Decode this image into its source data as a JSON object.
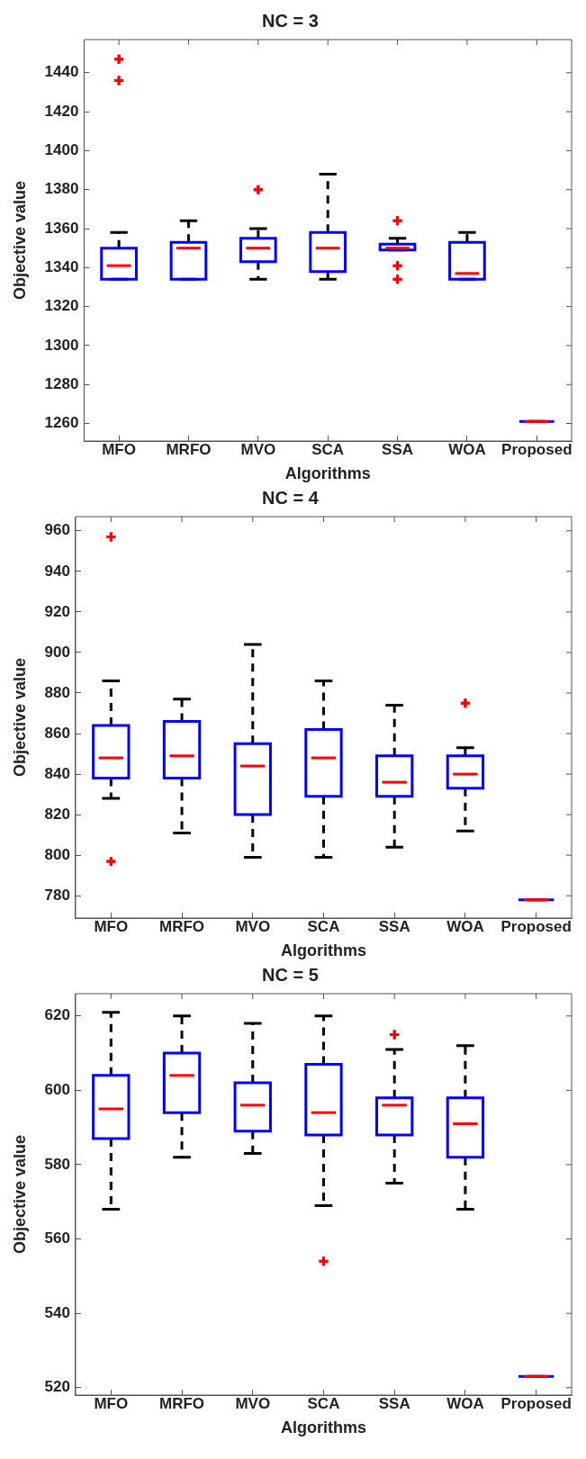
{
  "chart_data": [
    {
      "type": "box",
      "title": "NC = 3",
      "xlabel": "Algorithms",
      "ylabel": "Objective value",
      "categories": [
        "MFO",
        "MRFO",
        "MVO",
        "SCA",
        "SSA",
        "WOA",
        "Proposed"
      ],
      "ylim": [
        1251,
        1457
      ],
      "yticks": [
        1260,
        1280,
        1300,
        1320,
        1340,
        1360,
        1380,
        1400,
        1420,
        1440
      ],
      "grid": false,
      "marker": "cross",
      "series": [
        {
          "color": "#0000ff",
          "boxes": [
            {
              "low": 1334,
              "q1": 1334,
              "median": 1341,
              "q3": 1350,
              "high": 1358,
              "outliers": [
                1447,
                1436
              ]
            },
            {
              "low": 1334,
              "q1": 1334,
              "median": 1350,
              "q3": 1353,
              "high": 1364
            },
            {
              "low": 1334,
              "q1": 1343,
              "median": 1350,
              "q3": 1355,
              "high": 1360,
              "outliers": [
                1380
              ]
            },
            {
              "low": 1334,
              "q1": 1338,
              "median": 1350,
              "q3": 1358,
              "high": 1388
            },
            {
              "low": 1349,
              "q1": 1349,
              "median": 1350,
              "q3": 1352,
              "high": 1355,
              "outliers": [
                1364,
                1341,
                1334
              ]
            },
            {
              "low": 1334,
              "q1": 1334,
              "median": 1337,
              "q3": 1353,
              "high": 1358
            },
            {
              "low": 1261,
              "q1": 1261,
              "median": 1261,
              "q3": 1261,
              "high": 1261
            }
          ]
        }
      ]
    },
    {
      "type": "box",
      "title": "NC = 4",
      "xlabel": "Algorithms",
      "ylabel": "Objective value",
      "categories": [
        "MFO",
        "MRFO",
        "MVO",
        "SCA",
        "SSA",
        "WOA",
        "Proposed"
      ],
      "ylim": [
        769,
        967
      ],
      "yticks": [
        780,
        800,
        820,
        840,
        860,
        880,
        900,
        920,
        940,
        960
      ],
      "grid": false,
      "marker": "cross",
      "series": [
        {
          "color": "#0000ff",
          "boxes": [
            {
              "low": 828,
              "q1": 838,
              "median": 848,
              "q3": 864,
              "high": 886,
              "outliers": [
                957,
                797
              ]
            },
            {
              "low": 811,
              "q1": 838,
              "median": 849,
              "q3": 866,
              "high": 877
            },
            {
              "low": 799,
              "q1": 820,
              "median": 844,
              "q3": 855,
              "high": 904
            },
            {
              "low": 799,
              "q1": 829,
              "median": 848,
              "q3": 862,
              "high": 886
            },
            {
              "low": 804,
              "q1": 829,
              "median": 836,
              "q3": 849,
              "high": 874
            },
            {
              "low": 812,
              "q1": 833,
              "median": 840,
              "q3": 849,
              "high": 853,
              "outliers": [
                875
              ]
            },
            {
              "low": 778,
              "q1": 778,
              "median": 778,
              "q3": 778,
              "high": 778
            }
          ]
        }
      ]
    },
    {
      "type": "box",
      "title": "NC = 5",
      "xlabel": "Algorithms",
      "ylabel": "Objective value",
      "categories": [
        "MFO",
        "MRFO",
        "MVO",
        "SCA",
        "SSA",
        "WOA",
        "Proposed"
      ],
      "ylim": [
        518,
        626
      ],
      "yticks": [
        520,
        540,
        560,
        580,
        600,
        620
      ],
      "grid": false,
      "marker": "cross",
      "series": [
        {
          "color": "#0000ff",
          "boxes": [
            {
              "low": 568,
              "q1": 587,
              "median": 595,
              "q3": 604,
              "high": 621
            },
            {
              "low": 582,
              "q1": 594,
              "median": 604,
              "q3": 610,
              "high": 620
            },
            {
              "low": 583,
              "q1": 589,
              "median": 596,
              "q3": 602,
              "high": 618
            },
            {
              "low": 569,
              "q1": 588,
              "median": 594,
              "q3": 607,
              "high": 620,
              "outliers": [
                554
              ]
            },
            {
              "low": 575,
              "q1": 588,
              "median": 596,
              "q3": 598,
              "high": 611,
              "outliers": [
                615
              ]
            },
            {
              "low": 568,
              "q1": 582,
              "median": 591,
              "q3": 598,
              "high": 612
            },
            {
              "low": 523,
              "q1": 523,
              "median": 523,
              "q3": 523,
              "high": 523
            }
          ]
        }
      ]
    }
  ]
}
